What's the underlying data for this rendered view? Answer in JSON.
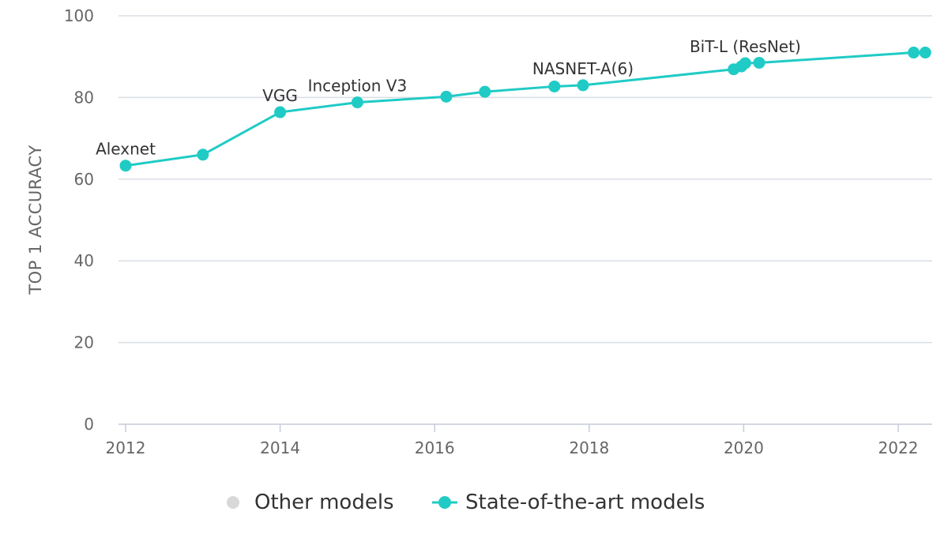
{
  "chart_data": {
    "type": "line",
    "title": "",
    "xlabel": "",
    "ylabel": "TOP 1 ACCURACY",
    "xlim": [
      2012,
      2022.5
    ],
    "ylim": [
      0,
      100
    ],
    "xticks": [
      2012,
      2014,
      2016,
      2018,
      2020,
      2022
    ],
    "yticks": [
      0,
      20,
      40,
      60,
      80,
      100
    ],
    "grid": "horizontal",
    "legend_position": "bottom",
    "legend": [
      {
        "name": "Other models",
        "color": "#d8d8d8"
      },
      {
        "name": "State-of-the-art models",
        "color": "#20cbc5"
      }
    ],
    "series": [
      {
        "name": "State-of-the-art models",
        "color": "#20cbc5",
        "points": [
          {
            "x": 2012.0,
            "y": 63.3,
            "label": "Alexnet"
          },
          {
            "x": 2013.0,
            "y": 66.0,
            "label": ""
          },
          {
            "x": 2014.0,
            "y": 76.4,
            "label": "VGG"
          },
          {
            "x": 2015.0,
            "y": 78.8,
            "label": "Inception V3"
          },
          {
            "x": 2016.15,
            "y": 80.2,
            "label": ""
          },
          {
            "x": 2016.65,
            "y": 81.4,
            "label": ""
          },
          {
            "x": 2017.55,
            "y": 82.7,
            "label": ""
          },
          {
            "x": 2017.92,
            "y": 83.0,
            "label": "NASNET-A(6)"
          },
          {
            "x": 2019.87,
            "y": 86.9,
            "label": ""
          },
          {
            "x": 2019.97,
            "y": 87.6,
            "label": ""
          },
          {
            "x": 2020.02,
            "y": 88.4,
            "label": "BiT-L (ResNet)"
          },
          {
            "x": 2020.2,
            "y": 88.5,
            "label": ""
          },
          {
            "x": 2022.2,
            "y": 91.0,
            "label": ""
          },
          {
            "x": 2022.35,
            "y": 91.0,
            "label": ""
          }
        ]
      }
    ]
  }
}
